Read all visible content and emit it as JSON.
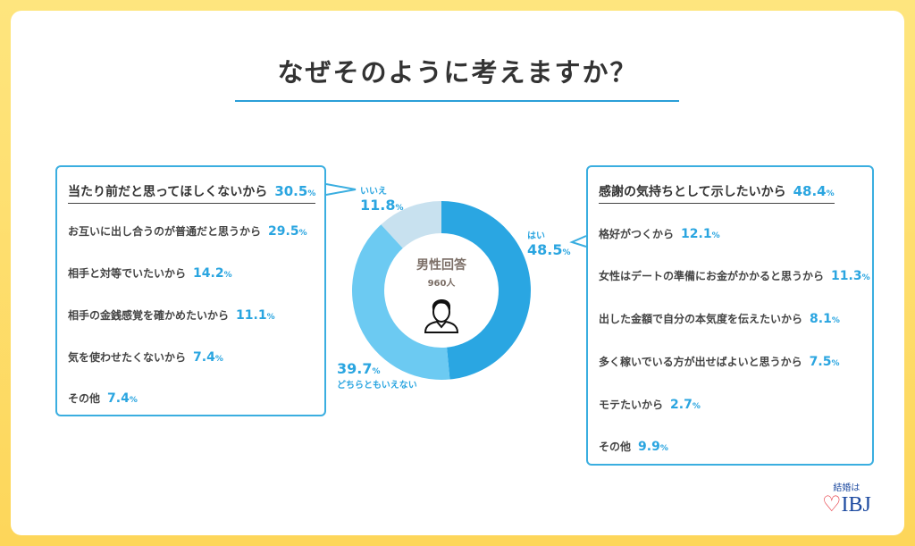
{
  "title": "なぜそのように考えますか？",
  "chart_data": {
    "type": "pie",
    "donut": true,
    "center_label": "男性回答",
    "center_count": "960人",
    "slices": [
      {
        "label": "はい",
        "value": 48.5,
        "color": "#2aa6e2"
      },
      {
        "label": "どちらともいえない",
        "value": 39.7,
        "color": "#6ccaf2"
      },
      {
        "label": "いいえ",
        "value": 11.8,
        "color": "#c8e1ef"
      }
    ]
  },
  "left_box": {
    "items": [
      {
        "label": "当たり前だと思ってほしくないから",
        "value": "30.5"
      },
      {
        "label": "お互いに出し合うのが普通だと思うから",
        "value": "29.5"
      },
      {
        "label": "相手と対等でいたいから",
        "value": "14.2"
      },
      {
        "label": "相手の金銭感覚を確かめたいから",
        "value": "11.1"
      },
      {
        "label": "気を使わせたくないから",
        "value": "7.4"
      },
      {
        "label": "その他",
        "value": "7.4"
      }
    ]
  },
  "right_box": {
    "items": [
      {
        "label": "感謝の気持ちとして示したいから",
        "value": "48.4"
      },
      {
        "label": "格好がつくから",
        "value": "12.1"
      },
      {
        "label": "女性はデートの準備にお金がかかると思うから",
        "value": "11.3"
      },
      {
        "label": "出した金額で自分の本気度を伝えたいから",
        "value": "8.1"
      },
      {
        "label": "多く稼いでいる方が出せばよいと思うから",
        "value": "7.5"
      },
      {
        "label": "モテたいから",
        "value": "2.7"
      },
      {
        "label": "その他",
        "value": "9.9"
      }
    ]
  },
  "percent_sign": "%",
  "logo": {
    "tagline": "結婚は",
    "brand": "IBJ"
  }
}
